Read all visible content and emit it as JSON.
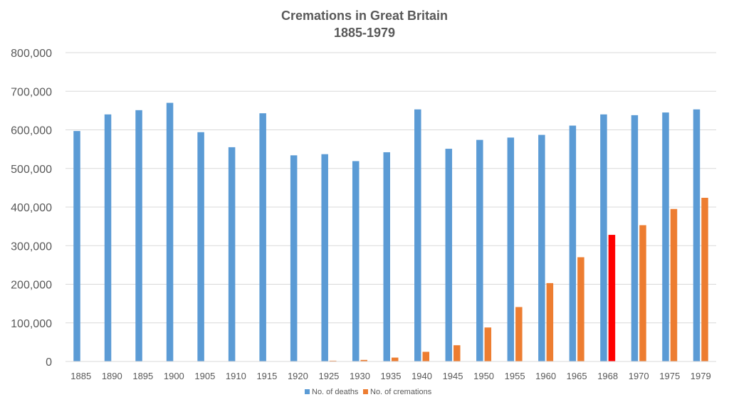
{
  "chart_data": {
    "type": "bar",
    "title": "Cremations in Great Britain",
    "subtitle": "1885-1979",
    "xlabel": "",
    "ylabel": "",
    "ylim": [
      0,
      800000
    ],
    "yticks": [
      0,
      100000,
      200000,
      300000,
      400000,
      500000,
      600000,
      700000,
      800000
    ],
    "ytick_labels": [
      "0",
      "100,000",
      "200,000",
      "300,000",
      "400,000",
      "500,000",
      "600,000",
      "700,000",
      "800,000"
    ],
    "grid": true,
    "legend_position": "bottom",
    "categories": [
      "1885",
      "1890",
      "1895",
      "1900",
      "1905",
      "1910",
      "1915",
      "1920",
      "1925",
      "1930",
      "1935",
      "1940",
      "1945",
      "1950",
      "1955",
      "1960",
      "1965",
      "1968",
      "1970",
      "1975",
      "1979"
    ],
    "series": [
      {
        "name": "No. of deaths",
        "color": "#5b9bd5",
        "values": [
          597000,
          640000,
          651000,
          670000,
          594000,
          555000,
          643000,
          534000,
          537000,
          519000,
          542000,
          653000,
          551000,
          574000,
          580000,
          587000,
          611000,
          640000,
          638000,
          645000,
          653000
        ]
      },
      {
        "name": "No. of cremations",
        "color": "#ed7d31",
        "highlight_color": "#ff0000",
        "highlight_category": "1968",
        "values": [
          0,
          0,
          0,
          0,
          0,
          0,
          0,
          0,
          2000,
          4000,
          10000,
          25000,
          42000,
          88000,
          141000,
          203000,
          270000,
          328000,
          353000,
          395000,
          424000
        ]
      }
    ]
  }
}
